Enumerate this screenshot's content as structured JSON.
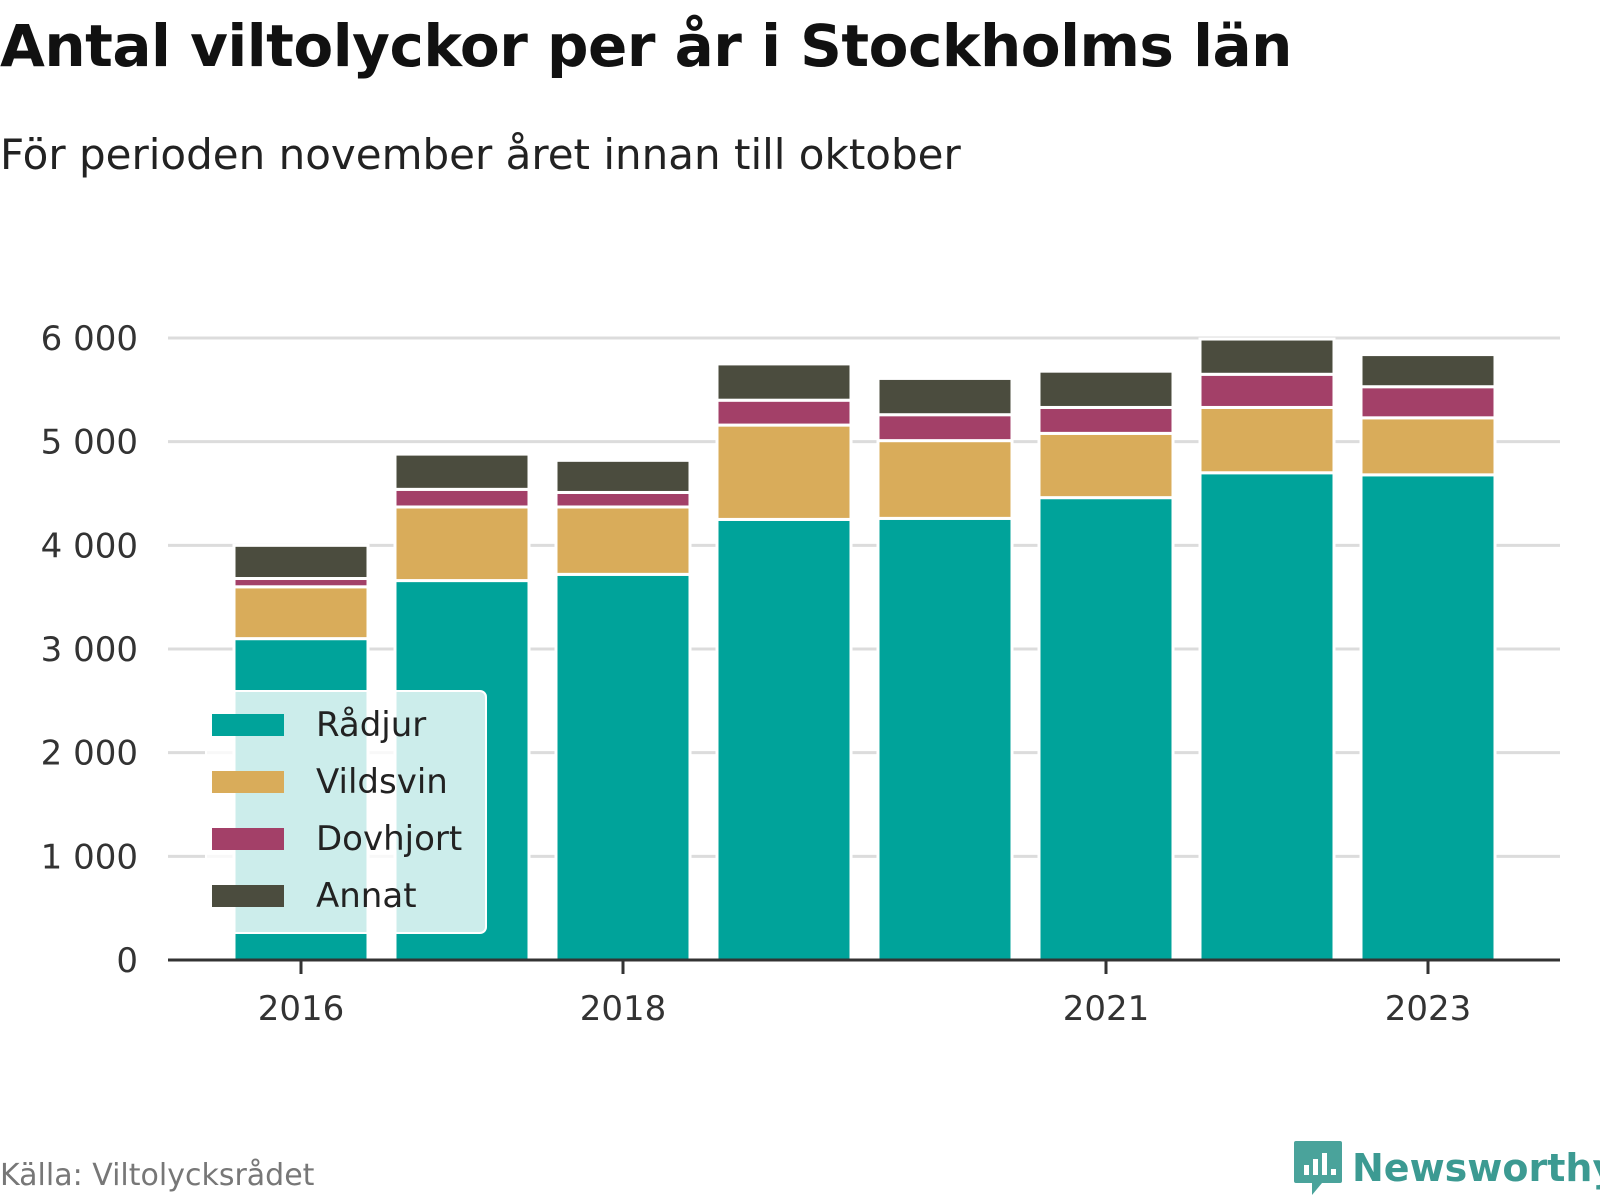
{
  "chart_data": {
    "type": "bar",
    "stacked": true,
    "title": "Antal viltolyckor per år i Stockholms län",
    "subtitle": "För perioden november året innan till oktober",
    "categories": [
      "2016",
      "2017",
      "2018",
      "2019",
      "2020",
      "2021",
      "2022",
      "2023"
    ],
    "x_tick_labels": [
      "2016",
      "",
      "2018",
      "",
      "",
      "2021",
      "",
      "2023"
    ],
    "series": [
      {
        "name": "Rådjur",
        "color": "#00a39a",
        "values": [
          3100,
          3660,
          3720,
          4250,
          4260,
          4460,
          4700,
          4680
        ]
      },
      {
        "name": "Vildsvin",
        "color": "#d9ac5a",
        "values": [
          500,
          710,
          650,
          910,
          750,
          620,
          630,
          550
        ]
      },
      {
        "name": "Dovhjort",
        "color": "#a34068",
        "values": [
          80,
          170,
          140,
          240,
          250,
          250,
          320,
          300
        ]
      },
      {
        "name": "Annat",
        "color": "#4b4c3e",
        "values": [
          320,
          340,
          310,
          350,
          350,
          350,
          340,
          310
        ]
      }
    ],
    "ylim": [
      0,
      6000
    ],
    "y_ticks": [
      0,
      1000,
      2000,
      3000,
      4000,
      5000,
      6000
    ],
    "y_tick_labels": [
      "0",
      "1 000",
      "2 000",
      "3 000",
      "4 000",
      "5 000",
      "6 000"
    ],
    "grid": true,
    "legend_position": "bottom-left"
  },
  "footer": {
    "source": "Källa: Viltolycksrådet",
    "logo_icon": "newsworthy-chart-bubble-icon",
    "logo_text": "Newsworthy"
  }
}
